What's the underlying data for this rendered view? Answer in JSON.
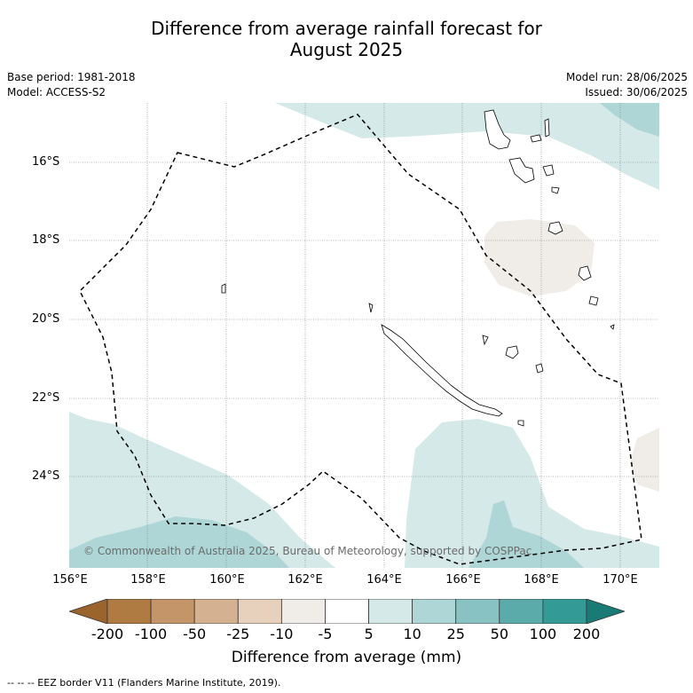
{
  "title_line1": "Difference from average rainfall forecast for",
  "title_line2": "August 2025",
  "meta_left": {
    "base_period": "Base period: 1981-2018",
    "model": "Model: ACCESS-S2"
  },
  "meta_right": {
    "model_run": "Model run: 28/06/2025",
    "issued": "Issued: 30/06/2025"
  },
  "copyright": "© Commonwealth of Australia 2025, Bureau of Meteorology, supported by COSPPac",
  "y_ticks": [
    "16°S",
    "18°S",
    "20°S",
    "22°S",
    "24°S"
  ],
  "x_ticks": [
    "156°E",
    "158°E",
    "160°E",
    "162°E",
    "164°E",
    "166°E",
    "168°E",
    "170°E"
  ],
  "colorbar": {
    "labels": [
      "-200",
      "-100",
      "-50",
      "-25",
      "-10",
      "-5",
      "5",
      "10",
      "25",
      "50",
      "100",
      "200"
    ],
    "colors": [
      "#9a642c",
      "#b07a43",
      "#c39569",
      "#d4b191",
      "#e7d1bd",
      "#f0ede8",
      "#ffffff",
      "#d4e9e8",
      "#aed6d6",
      "#88c2c2",
      "#5babab",
      "#339a96",
      "#1a7a76"
    ],
    "title": "Difference from average (mm)"
  },
  "footer": "--  --  -- EEZ border V11 (Flanders Marine Institute, 2019)."
}
